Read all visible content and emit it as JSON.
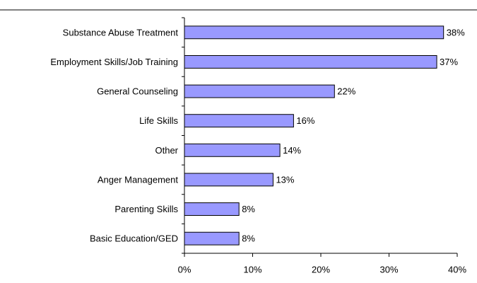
{
  "chart_data": {
    "type": "bar",
    "orientation": "horizontal",
    "categories": [
      "Substance Abuse Treatment",
      "Employment Skills/Job Training",
      "General Counseling",
      "Life Skills",
      "Other",
      "Anger Management",
      "Parenting Skills",
      "Basic Education/GED"
    ],
    "values": [
      38,
      37,
      22,
      16,
      14,
      13,
      8,
      8
    ],
    "value_labels": [
      "38%",
      "37%",
      "22%",
      "16%",
      "14%",
      "13%",
      "8%",
      "8%"
    ],
    "color": "#9999ff",
    "xlim": [
      0,
      40
    ],
    "xticks": [
      {
        "value": 0,
        "label": "0%"
      },
      {
        "value": 10,
        "label": "10%"
      },
      {
        "value": 20,
        "label": "20%"
      },
      {
        "value": 30,
        "label": "30%"
      },
      {
        "value": 40,
        "label": "40%"
      }
    ],
    "grid": false
  }
}
